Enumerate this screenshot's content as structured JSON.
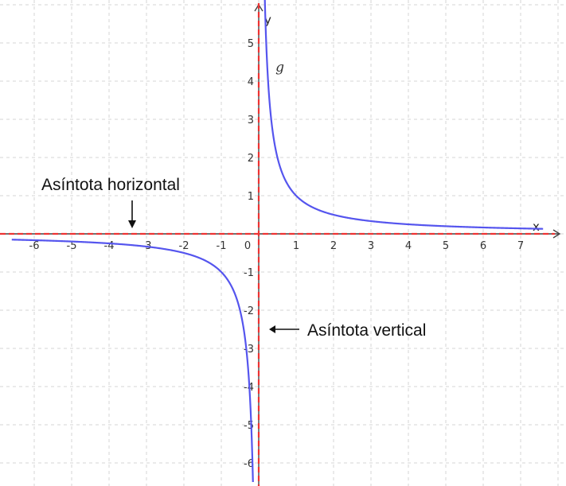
{
  "chart_data": {
    "type": "line",
    "title": "",
    "xlabel": "x",
    "ylabel": "y",
    "xlim": [
      -6.6,
      7.6
    ],
    "ylim": [
      -6.5,
      6.2
    ],
    "grid": true,
    "x_ticks": [
      -6,
      -5,
      -4,
      -3,
      -2,
      -1,
      0,
      1,
      2,
      3,
      4,
      5,
      6,
      7
    ],
    "y_ticks": [
      -6,
      -5,
      -4,
      -3,
      -2,
      -1,
      1,
      2,
      3,
      4,
      5
    ],
    "series": [
      {
        "name": "g",
        "color": "#5555ee",
        "function": "1/x",
        "points": [
          [
            -6,
            -0.167
          ],
          [
            -5,
            -0.2
          ],
          [
            -4,
            -0.25
          ],
          [
            -3,
            -0.333
          ],
          [
            -2,
            -0.5
          ],
          [
            -1,
            -1
          ],
          [
            -0.5,
            -2
          ],
          [
            -0.25,
            -4
          ],
          [
            0.25,
            4
          ],
          [
            0.5,
            2
          ],
          [
            1,
            1
          ],
          [
            2,
            0.5
          ],
          [
            3,
            0.333
          ],
          [
            4,
            0.25
          ],
          [
            5,
            0.2
          ],
          [
            6,
            0.167
          ],
          [
            7,
            0.143
          ]
        ]
      }
    ],
    "asymptotes": {
      "horizontal_y": 0,
      "vertical_x": 0,
      "color": "#ee3333"
    },
    "annotations": {
      "horizontal": "Asíntota horizontal",
      "vertical": "Asíntota vertical"
    }
  }
}
